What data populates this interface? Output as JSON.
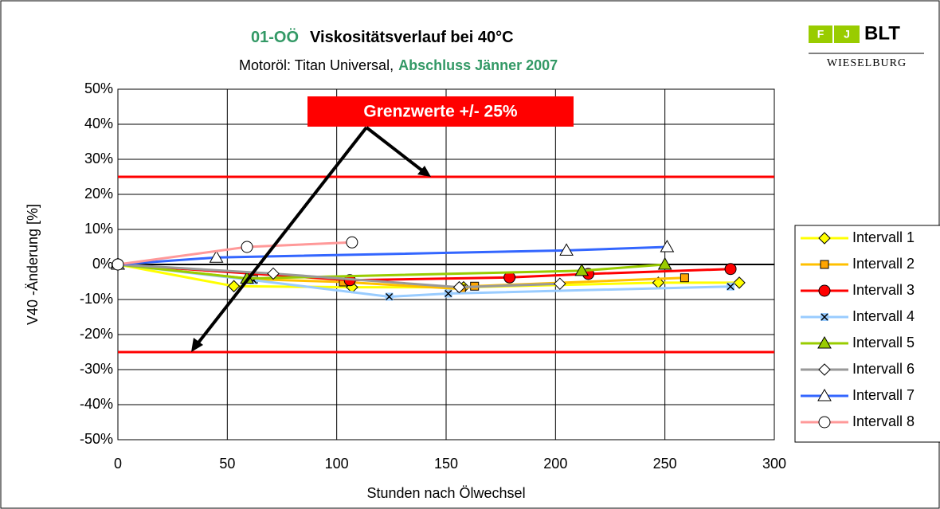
{
  "chart_data": {
    "type": "line",
    "title_code": "01-OÖ",
    "title": "Viskositätsverlauf bei 40°C",
    "subtitle": "Motoröl: Titan Universal,",
    "subtitle_highlight": "Abschluss Jänner 2007",
    "x_label": "Stunden nach Ölwechsel",
    "y_label": "V40 -Änderung [%]",
    "logo": {
      "left": "F",
      "right": "J",
      "brand": "BLT",
      "place": "WIESELBURG"
    },
    "annotation": "Grenzwerte +/- 25%",
    "reference_lines": [
      25,
      -25
    ],
    "reference_color": "#ff0000",
    "xlim": [
      0,
      300
    ],
    "xticks": [
      0,
      50,
      100,
      150,
      200,
      250,
      300
    ],
    "ylim": [
      -50,
      50
    ],
    "yticks": [
      {
        "value": 50,
        "label": "50%"
      },
      {
        "value": 40,
        "label": "40%"
      },
      {
        "value": 30,
        "label": "30%"
      },
      {
        "value": 20,
        "label": "20%"
      },
      {
        "value": 10,
        "label": "10%"
      },
      {
        "value": 0,
        "label": "0%"
      },
      {
        "value": -10,
        "label": "-10%"
      },
      {
        "value": -20,
        "label": "-20%"
      },
      {
        "value": -30,
        "label": "-30%"
      },
      {
        "value": -40,
        "label": "-40%"
      },
      {
        "value": -50,
        "label": "-50%"
      }
    ],
    "grid": true,
    "legend": "right",
    "series": [
      {
        "name": "Intervall 1",
        "color": "#ffff00",
        "marker": "diamond",
        "marker_fill": "#ffff00",
        "x": [
          0,
          53,
          107,
          158,
          247,
          284
        ],
        "values": [
          0,
          -6.2,
          -6.5,
          -6.5,
          -5.2,
          -5.2
        ]
      },
      {
        "name": "Intervall 2",
        "color": "#ffc000",
        "marker": "square",
        "marker_fill": "#ffa500",
        "x": [
          0,
          62,
          103,
          157,
          163,
          259
        ],
        "values": [
          0,
          -4.2,
          -5,
          -7,
          -6.2,
          -3.8
        ]
      },
      {
        "name": "Intervall 3",
        "color": "#ff0000",
        "marker": "circle",
        "marker_fill": "#ff0000",
        "x": [
          0,
          106,
          179,
          215,
          280
        ],
        "values": [
          0,
          -4.5,
          -3.7,
          -2.7,
          -1.3
        ]
      },
      {
        "name": "Intervall 4",
        "color": "#99ccff",
        "marker": "xsquare",
        "marker_fill": "#99ccff",
        "x": [
          0,
          62,
          124,
          151,
          280
        ],
        "values": [
          0,
          -4.5,
          -9.2,
          -8.3,
          -6.3
        ]
      },
      {
        "name": "Intervall 5",
        "color": "#99cc00",
        "marker": "triangle",
        "marker_fill": "#99cc00",
        "x": [
          0,
          59,
          212,
          250
        ],
        "values": [
          0,
          -4,
          -1.8,
          0
        ]
      },
      {
        "name": "Intervall 6",
        "color": "#999999",
        "marker": "diamond",
        "marker_fill": "#ffffff",
        "x": [
          0,
          71,
          156,
          202
        ],
        "values": [
          0,
          -2.6,
          -6.5,
          -5.5
        ]
      },
      {
        "name": "Intervall 7",
        "color": "#3366ff",
        "marker": "triangle",
        "marker_fill": "#ffffff",
        "x": [
          0,
          45,
          205,
          251
        ],
        "values": [
          0,
          2,
          4,
          5
        ]
      },
      {
        "name": "Intervall 8",
        "color": "#ff9999",
        "marker": "circle",
        "marker_fill": "#ffffff",
        "x": [
          0,
          59,
          107
        ],
        "values": [
          0,
          5,
          6.3
        ]
      }
    ]
  }
}
